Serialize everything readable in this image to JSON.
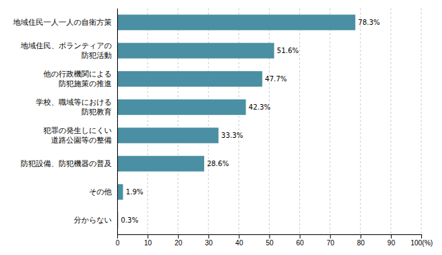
{
  "chart_data": {
    "type": "bar",
    "orientation": "horizontal",
    "categories": [
      "分からない",
      "その他",
      "防犯設備、防犯機器の普及",
      "犯罪の発生しにくい\n道路公園等の整備",
      "学校、職域等における\n防犯教育",
      "他の行政機関による\n防犯施策の推進",
      "地域住民、ボランティアの\n防犯活動",
      "地域住民一人一人の自衛方策"
    ],
    "values": [
      0.3,
      1.9,
      28.6,
      33.3,
      42.3,
      47.7,
      51.6,
      78.3
    ],
    "value_labels": [
      "0.3%",
      "1.9%",
      "28.6%",
      "33.3%",
      "42.3%",
      "47.7%",
      "51.6%",
      "78.3%"
    ],
    "data_labels": true,
    "color": "#4a8fa3",
    "xlim": [
      0,
      100
    ],
    "xticks": [
      0,
      10,
      20,
      30,
      40,
      50,
      60,
      70,
      80,
      90,
      {
        "value": 100,
        "label": "100(%)"
      }
    ],
    "grid": true
  }
}
